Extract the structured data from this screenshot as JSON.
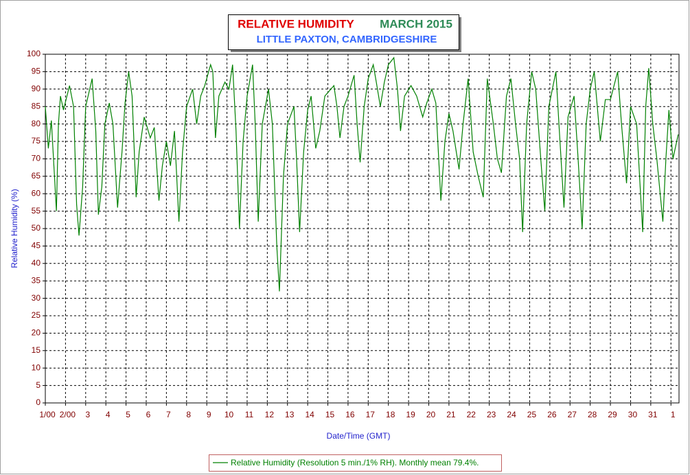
{
  "chart_data": {
    "type": "line",
    "title": "RELATIVE HUMIDITY",
    "title_period": "MARCH 2015",
    "subtitle": "LITTLE PAXTON, CAMBRIDGESHIRE",
    "x_label": "Date/Time (GMT)",
    "y_label": "Relative Humidity (%)",
    "xlim": [
      0,
      31.4
    ],
    "ylim": [
      0,
      100
    ],
    "grid": true,
    "xticks": [
      {
        "value": 0,
        "label": "1/00"
      },
      {
        "value": 1,
        "label": "2/00"
      },
      {
        "value": 2,
        "label": "3"
      },
      {
        "value": 3,
        "label": "4"
      },
      {
        "value": 4,
        "label": "5"
      },
      {
        "value": 5,
        "label": "6"
      },
      {
        "value": 6,
        "label": "7"
      },
      {
        "value": 7,
        "label": "8"
      },
      {
        "value": 8,
        "label": "9"
      },
      {
        "value": 9,
        "label": "10"
      },
      {
        "value": 10,
        "label": "11"
      },
      {
        "value": 11,
        "label": "12"
      },
      {
        "value": 12,
        "label": "13"
      },
      {
        "value": 13,
        "label": "14"
      },
      {
        "value": 14,
        "label": "15"
      },
      {
        "value": 15,
        "label": "16"
      },
      {
        "value": 16,
        "label": "17"
      },
      {
        "value": 17,
        "label": "18"
      },
      {
        "value": 18,
        "label": "19"
      },
      {
        "value": 19,
        "label": "20"
      },
      {
        "value": 20,
        "label": "21"
      },
      {
        "value": 21,
        "label": "22"
      },
      {
        "value": 22,
        "label": "23"
      },
      {
        "value": 23,
        "label": "24"
      },
      {
        "value": 24,
        "label": "25"
      },
      {
        "value": 25,
        "label": "26"
      },
      {
        "value": 26,
        "label": "27"
      },
      {
        "value": 27,
        "label": "28"
      },
      {
        "value": 28,
        "label": "29"
      },
      {
        "value": 29,
        "label": "30"
      },
      {
        "value": 30,
        "label": "31"
      },
      {
        "value": 31,
        "label": "1"
      }
    ],
    "yticks": [
      0,
      5,
      10,
      15,
      20,
      25,
      30,
      35,
      40,
      45,
      50,
      55,
      60,
      65,
      70,
      75,
      80,
      85,
      90,
      95,
      100
    ],
    "x": [
      0,
      0.15,
      0.3,
      0.55,
      0.65,
      0.75,
      0.9,
      1.2,
      1.4,
      1.55,
      1.67,
      1.85,
      2.0,
      2.32,
      2.5,
      2.63,
      2.8,
      2.95,
      3.17,
      3.35,
      3.58,
      3.8,
      3.95,
      4.13,
      4.3,
      4.5,
      4.65,
      4.9,
      5.2,
      5.4,
      5.63,
      5.8,
      6.0,
      6.2,
      6.4,
      6.62,
      6.8,
      7.0,
      7.3,
      7.5,
      7.7,
      7.9,
      8.19,
      8.3,
      8.43,
      8.6,
      8.9,
      9.1,
      9.28,
      9.45,
      9.62,
      9.8,
      10.0,
      10.27,
      10.4,
      10.55,
      10.75,
      11.06,
      11.25,
      11.47,
      11.6,
      11.8,
      12.0,
      12.32,
      12.45,
      12.6,
      12.8,
      13.0,
      13.17,
      13.4,
      13.6,
      13.85,
      14.3,
      14.45,
      14.6,
      14.8,
      15.0,
      15.3,
      15.45,
      15.6,
      15.8,
      16.0,
      16.25,
      16.4,
      16.6,
      16.8,
      17.0,
      17.27,
      17.45,
      17.6,
      17.8,
      18.12,
      18.4,
      18.7,
      18.9,
      19.15,
      19.35,
      19.6,
      19.8,
      20.0,
      20.2,
      20.5,
      20.7,
      20.95,
      21.2,
      21.45,
      21.7,
      21.9,
      22.2,
      22.4,
      22.6,
      22.85,
      23.07,
      23.3,
      23.5,
      23.65,
      23.85,
      24.1,
      24.3,
      24.55,
      24.75,
      24.95,
      25.3,
      25.45,
      25.7,
      25.9,
      26.2,
      26.4,
      26.6,
      26.8,
      27.0,
      27.2,
      27.35,
      27.5,
      27.75,
      28.0,
      28.36,
      28.55,
      28.8,
      29.0,
      29.3,
      29.6,
      29.75,
      29.9,
      30.1,
      30.3,
      30.6,
      30.75,
      30.9,
      31.1,
      31.36
    ],
    "series": [
      {
        "name": "Relative Humidity (Resolution 5 min./1% RH). Monthly mean 79.4%.",
        "color": "#008000",
        "values": [
          85,
          73,
          81,
          55,
          80,
          88,
          84,
          91,
          85,
          57,
          48,
          62,
          85,
          93,
          78,
          54,
          62,
          80,
          86,
          80,
          56,
          72,
          86,
          95,
          88,
          59,
          72,
          82,
          76,
          79,
          58,
          68,
          75,
          68,
          78,
          52,
          72,
          85,
          90,
          80,
          88,
          91,
          97,
          95,
          76,
          88,
          92,
          90,
          97,
          78,
          50,
          75,
          88,
          97,
          80,
          52,
          80,
          90,
          80,
          45,
          32,
          65,
          80,
          85,
          70,
          49,
          72,
          84,
          88,
          73,
          78,
          88,
          91,
          85,
          76,
          85,
          88,
          94,
          80,
          69,
          85,
          93,
          97,
          92,
          85,
          92,
          97,
          99,
          90,
          78,
          88,
          91,
          88,
          82,
          86,
          90,
          86,
          58,
          75,
          83,
          78,
          67,
          80,
          93,
          72,
          65,
          59,
          93,
          80,
          70,
          66,
          88,
          93,
          80,
          70,
          49,
          80,
          95,
          90,
          70,
          55,
          85,
          95,
          80,
          56,
          82,
          88,
          70,
          50,
          80,
          90,
          95,
          85,
          75,
          87,
          87,
          95,
          80,
          63,
          85,
          80,
          49,
          85,
          96,
          80,
          70,
          52,
          70,
          84,
          70,
          77
        ]
      }
    ]
  }
}
